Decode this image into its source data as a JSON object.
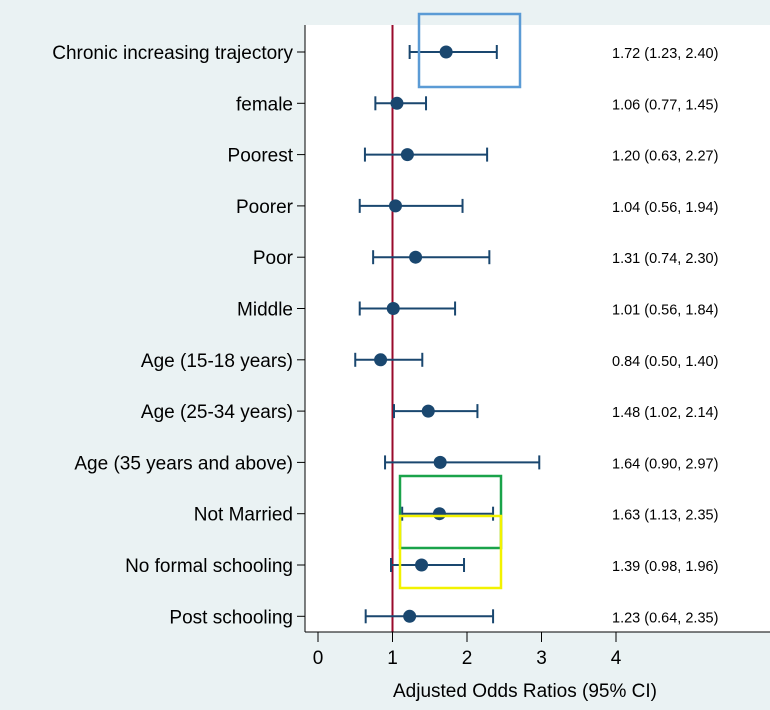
{
  "chart_data": {
    "type": "forest",
    "xlabel": "Adjusted Odds Ratios (95% CI)",
    "xlim": [
      0,
      5.8
    ],
    "x_ticks": [
      0,
      1,
      2,
      3,
      4
    ],
    "x_tick_labels": [
      "0",
      "1",
      "2",
      "3",
      "4"
    ],
    "reference_line": 1,
    "rows": [
      {
        "label": "Chronic increasing trajectory",
        "or": 1.72,
        "lo": 1.23,
        "hi": 2.4,
        "text": "1.72 (1.23, 2.40)"
      },
      {
        "label": "female",
        "or": 1.06,
        "lo": 0.77,
        "hi": 1.45,
        "text": "1.06 (0.77, 1.45)"
      },
      {
        "label": "Poorest",
        "or": 1.2,
        "lo": 0.63,
        "hi": 2.27,
        "text": "1.20 (0.63, 2.27)"
      },
      {
        "label": "Poorer",
        "or": 1.04,
        "lo": 0.56,
        "hi": 1.94,
        "text": "1.04 (0.56, 1.94)"
      },
      {
        "label": "Poor",
        "or": 1.31,
        "lo": 0.74,
        "hi": 2.3,
        "text": "1.31 (0.74, 2.30)"
      },
      {
        "label": "Middle",
        "or": 1.01,
        "lo": 0.56,
        "hi": 1.84,
        "text": "1.01 (0.56, 1.84)"
      },
      {
        "label": "Age (15-18 years)",
        "or": 0.84,
        "lo": 0.5,
        "hi": 1.4,
        "text": "0.84 (0.50, 1.40)"
      },
      {
        "label": "Age (25-34 years)",
        "or": 1.48,
        "lo": 1.02,
        "hi": 2.14,
        "text": "1.48 (1.02, 2.14)"
      },
      {
        "label": "Age (35 years and above)",
        "or": 1.64,
        "lo": 0.9,
        "hi": 2.97,
        "text": "1.64 (0.90, 2.97)"
      },
      {
        "label": "Not Married",
        "or": 1.63,
        "lo": 1.13,
        "hi": 2.35,
        "text": "1.63 (1.13, 2.35)"
      },
      {
        "label": "No formal schooling",
        "or": 1.39,
        "lo": 0.98,
        "hi": 1.96,
        "text": "1.39 (0.98, 1.96)"
      },
      {
        "label": "Post schooling",
        "or": 1.23,
        "lo": 0.64,
        "hi": 2.35,
        "text": "1.23 (0.64, 2.35)"
      }
    ],
    "highlight_boxes": [
      {
        "color": "#5b9bd5",
        "row": 0
      },
      {
        "color": "#1aa34a",
        "row": 9
      },
      {
        "color": "#f2f200",
        "row": 10
      }
    ],
    "colors": {
      "marker": "#1a476f",
      "reference_line": "#990a2b",
      "plot_background": "#ffffff",
      "outer_background": "#eaf2f3",
      "axis": "#000000"
    }
  }
}
